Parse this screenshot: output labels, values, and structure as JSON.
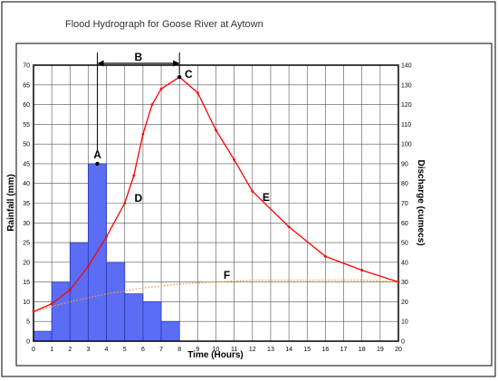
{
  "chart_data": {
    "type": "bar",
    "title": "Flood Hydrograph for Goose River at Aytown",
    "xlabel": "Time (Hours)",
    "ylabel_left": "Rainfall (mm)",
    "ylabel_right": "Discharge (cumecs)",
    "xlim": [
      0,
      20
    ],
    "ylim_left": [
      0,
      70
    ],
    "ylim_right": [
      0,
      140
    ],
    "x_ticks": [
      "0",
      "1",
      "2",
      "3",
      "4",
      "5",
      "6",
      "7",
      "8",
      "9",
      "10",
      "11",
      "12",
      "13",
      "14",
      "15",
      "16",
      "17",
      "18",
      "19",
      "20"
    ],
    "y_left_ticks": [
      "0",
      "5",
      "10",
      "15",
      "20",
      "25",
      "30",
      "35",
      "40",
      "45",
      "50",
      "55",
      "60",
      "65",
      "70"
    ],
    "y_right_ticks": [
      "0",
      "10",
      "20",
      "30",
      "40",
      "50",
      "60",
      "70",
      "80",
      "90",
      "100",
      "110",
      "120",
      "130",
      "140"
    ],
    "grid": true,
    "rainfall_bars": [
      {
        "start": 0,
        "end": 1,
        "value": 2.5
      },
      {
        "start": 1,
        "end": 2,
        "value": 15
      },
      {
        "start": 2,
        "end": 3,
        "value": 25
      },
      {
        "start": 3,
        "end": 4,
        "value": 45
      },
      {
        "start": 4,
        "end": 5,
        "value": 20
      },
      {
        "start": 5,
        "end": 6,
        "value": 12
      },
      {
        "start": 6,
        "end": 7,
        "value": 10
      },
      {
        "start": 7,
        "end": 8,
        "value": 5
      }
    ],
    "discharge_series": {
      "axis": "right",
      "color": "#ff0000",
      "x": [
        0,
        1,
        2,
        3,
        4,
        5,
        5.5,
        6,
        6.5,
        7,
        8,
        9,
        10,
        11,
        12,
        14,
        16,
        18,
        20
      ],
      "y": [
        15,
        19,
        26,
        38,
        53,
        70,
        84,
        105,
        120,
        128,
        134,
        126,
        107,
        92,
        76,
        58,
        43,
        36,
        30
      ]
    },
    "baseflow_series": {
      "axis": "right",
      "color": "#f0a030",
      "x": [
        0,
        2,
        4,
        6,
        8,
        10,
        12,
        14,
        16,
        18,
        20
      ],
      "y": [
        15,
        20,
        24,
        27,
        29,
        30,
        31,
        31,
        31,
        31,
        30
      ]
    },
    "annotations": [
      {
        "label": "A",
        "x": 3.5,
        "y_right": 90
      },
      {
        "label": "B",
        "x": 6,
        "y_right": 143
      },
      {
        "label": "C",
        "x": 8.5,
        "y_right": 135
      },
      {
        "label": "D",
        "x": 5.7,
        "y_right": 72
      },
      {
        "label": "E",
        "x": 12.8,
        "y_right": 74
      },
      {
        "label": "F",
        "x": 10.6,
        "y_right": 34
      }
    ],
    "lag_bracket": {
      "from": 3.5,
      "to": 8
    }
  }
}
